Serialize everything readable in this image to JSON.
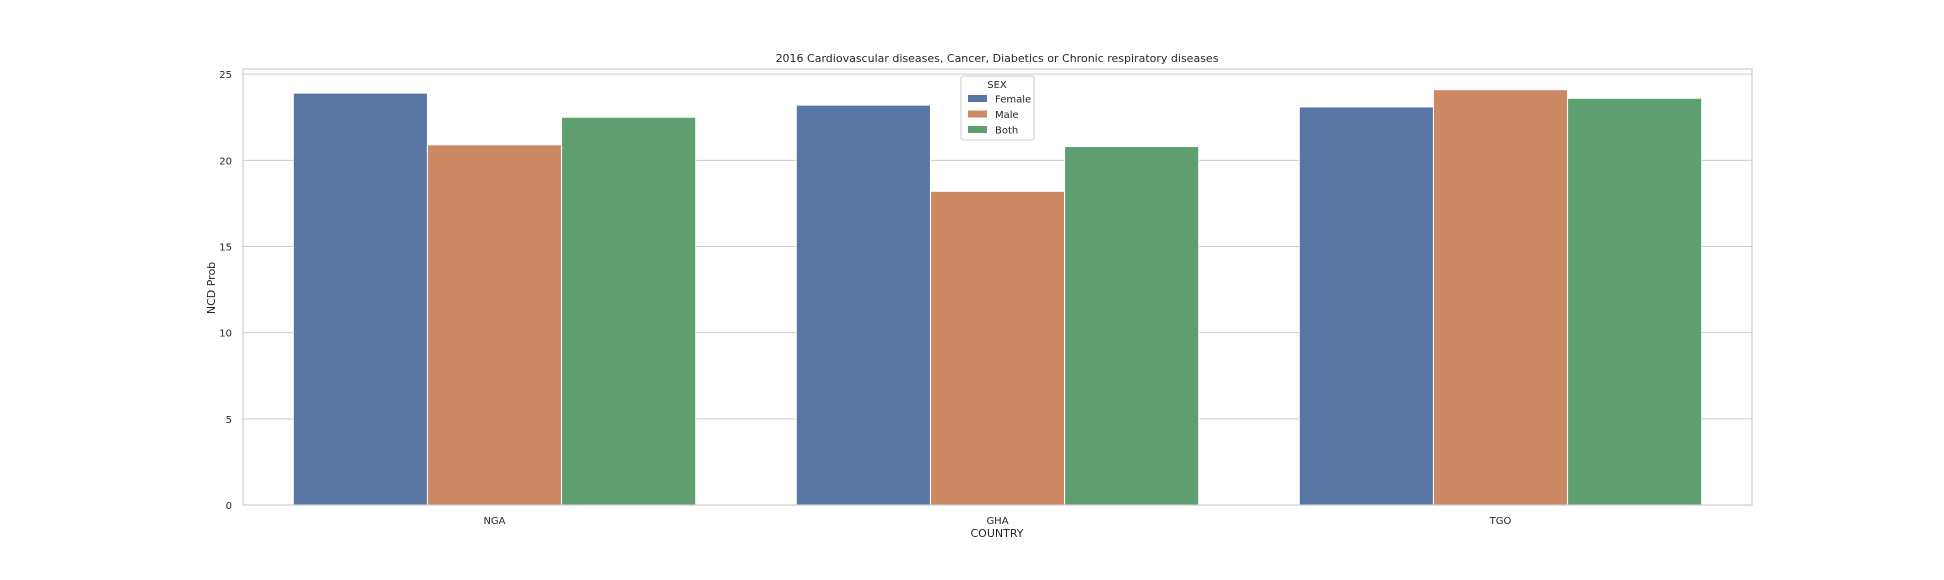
{
  "chart_data": {
    "type": "bar",
    "title": "2016 Cardiovascular diseases, Cancer, Diabetics or Chronic respiratory diseases",
    "xlabel": "COUNTRY",
    "ylabel": "NCD Prob",
    "categories": [
      "NGA",
      "GHA",
      "TGO"
    ],
    "series": [
      {
        "name": "Female",
        "values": [
          23.9,
          23.2,
          23.1
        ],
        "color": "#5875a4"
      },
      {
        "name": "Male",
        "values": [
          20.9,
          18.2,
          24.1
        ],
        "color": "#cc8963"
      },
      {
        "name": "Both",
        "values": [
          22.5,
          20.8,
          23.6
        ],
        "color": "#5f9e6e"
      }
    ],
    "ylim": [
      0,
      25.3
    ],
    "yticks": [
      0,
      5,
      10,
      15,
      20,
      25
    ],
    "grid": true,
    "legend": {
      "title": "SEX",
      "placement": "upper-center"
    }
  }
}
